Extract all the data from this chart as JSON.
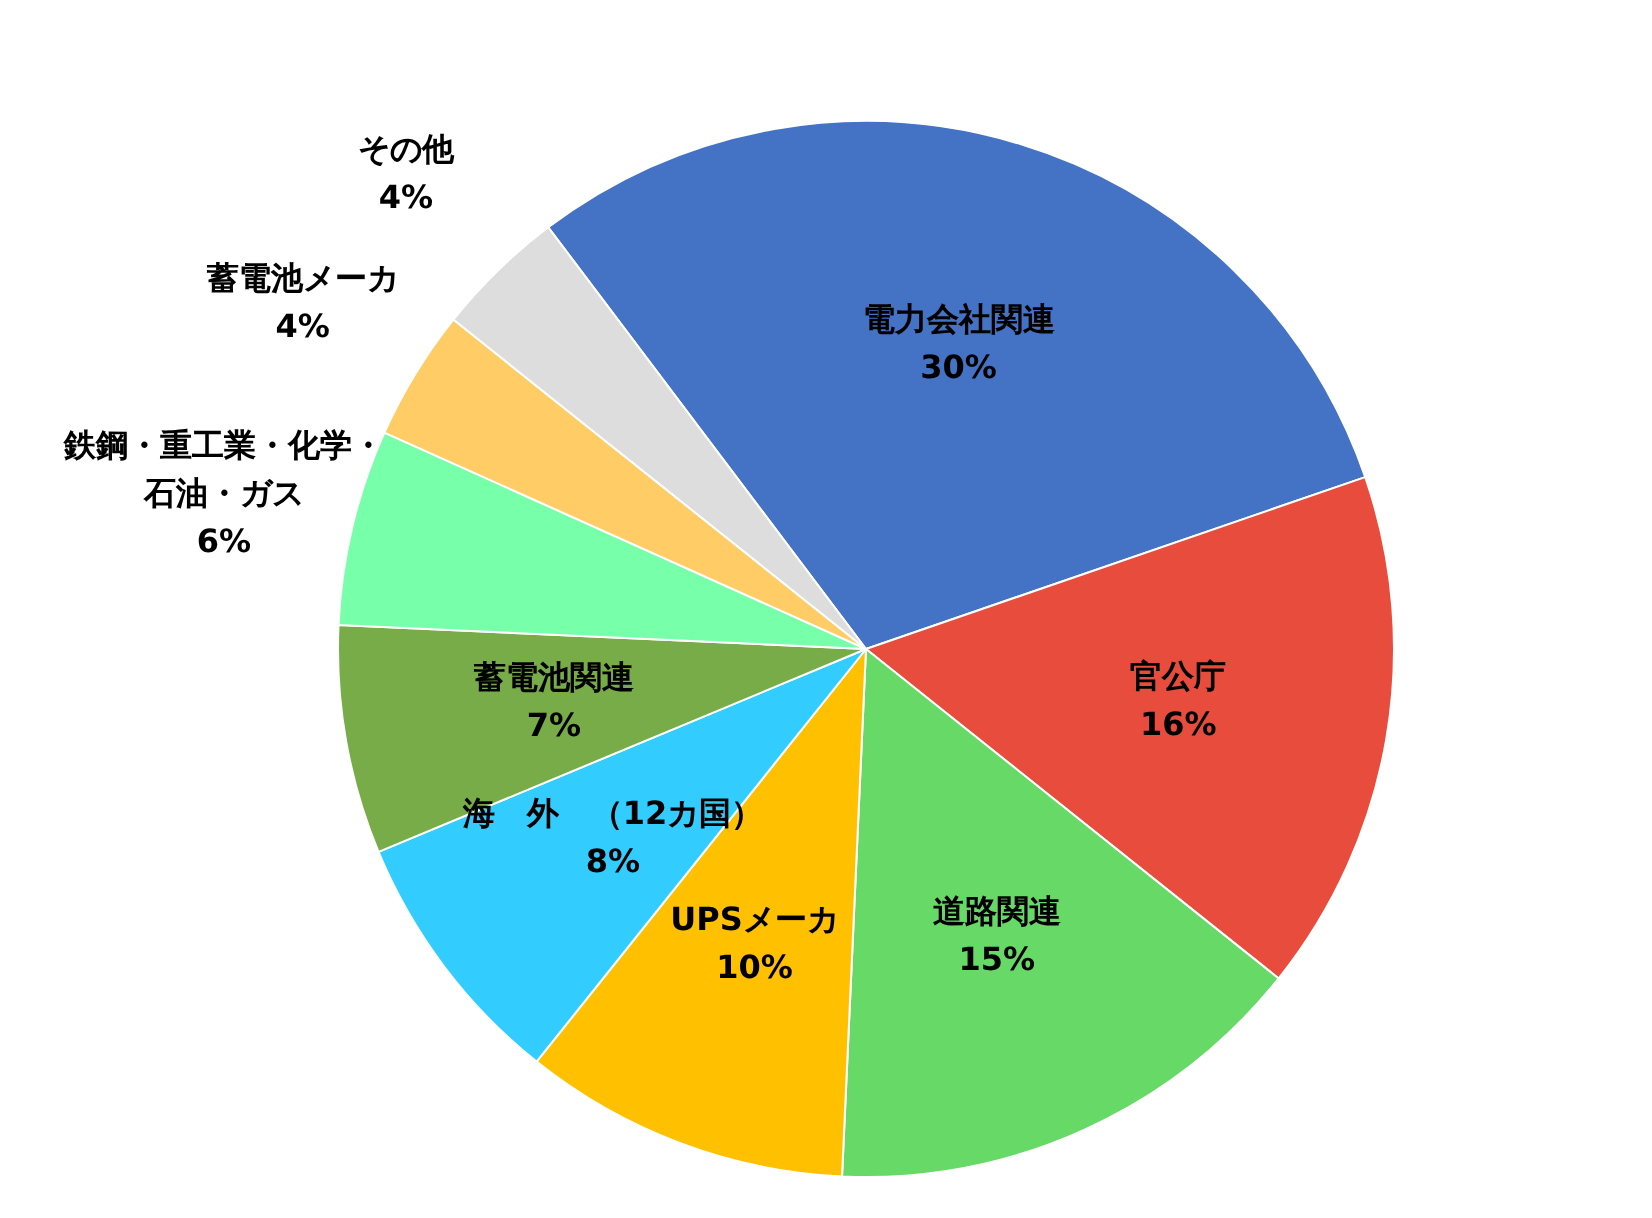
{
  "chart_data": {
    "type": "pie",
    "categories": [
      "電力会社関連",
      "官公庁",
      "道路関連",
      "UPSメーカ",
      "海　外　（12カ国）",
      "蓄電池関連",
      "鉄鋼・重工業・化学・石油・ガス",
      "蓄電池メーカ",
      "その他"
    ],
    "values": [
      30,
      16,
      15,
      10,
      8,
      7,
      6,
      4,
      4
    ],
    "colors": [
      "#4472c4",
      "#e84c3d",
      "#66d966",
      "#ffc000",
      "#33ccff",
      "#77ac48",
      "#77ffaa",
      "#ffcc66",
      "#dddddd"
    ],
    "value_labels": [
      "30%",
      "16%",
      "15%",
      "10%",
      "8%",
      "7%",
      "6%",
      "4%",
      "4%"
    ],
    "legend": false
  }
}
